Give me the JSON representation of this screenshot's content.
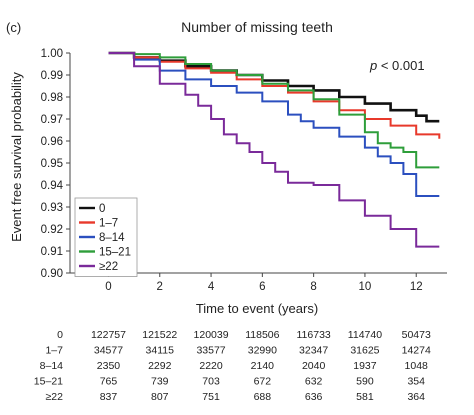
{
  "chart_data": {
    "type": "line",
    "panel_label": "(c)",
    "title": "Number of missing teeth",
    "p_value_label": "p",
    "p_value_text": " < 0.001",
    "xlabel": "Time to event (years)",
    "ylabel": "Event free survival probability",
    "xlim": [
      -1.5,
      13.2
    ],
    "ylim": [
      0.9,
      1.0
    ],
    "x_ticks": [
      0,
      2,
      4,
      6,
      8,
      10,
      12
    ],
    "x_tick_labels": [
      "0",
      "2",
      "4",
      "6",
      "8",
      "10",
      "12"
    ],
    "y_ticks": [
      0.9,
      0.91,
      0.92,
      0.93,
      0.94,
      0.95,
      0.96,
      0.97,
      0.98,
      0.99,
      1.0
    ],
    "y_tick_labels": [
      "0.90",
      "0.91",
      "0.92",
      "0.93",
      "0.94",
      "0.95",
      "0.96",
      "0.97",
      "0.98",
      "0.99",
      "1.00"
    ],
    "grid": false,
    "legend_position": "bottom-left",
    "series": [
      {
        "name": "0",
        "color": "#111111",
        "x": [
          0,
          1,
          2,
          3,
          4,
          5,
          6,
          7,
          8,
          9,
          10,
          11,
          12,
          12.4,
          12.9
        ],
        "y": [
          1.0,
          0.998,
          0.9965,
          0.994,
          0.992,
          0.99,
          0.9875,
          0.985,
          0.983,
          0.98,
          0.977,
          0.974,
          0.9715,
          0.969,
          0.969
        ]
      },
      {
        "name": "1–7",
        "color": "#e8392b",
        "x": [
          0,
          1,
          2,
          3,
          4,
          5,
          6,
          7,
          8,
          9,
          10,
          11,
          12,
          12.9
        ],
        "y": [
          1.0,
          0.998,
          0.996,
          0.993,
          0.991,
          0.988,
          0.985,
          0.982,
          0.978,
          0.974,
          0.97,
          0.967,
          0.963,
          0.961
        ]
      },
      {
        "name": "8–14",
        "color": "#2b4fbf",
        "x": [
          0,
          1,
          2,
          3,
          4,
          5,
          6,
          7,
          7.5,
          8,
          9,
          10,
          10.5,
          11,
          11.5,
          12,
          12.9
        ],
        "y": [
          1.0,
          0.997,
          0.992,
          0.988,
          0.985,
          0.982,
          0.978,
          0.972,
          0.969,
          0.966,
          0.962,
          0.957,
          0.953,
          0.95,
          0.945,
          0.935,
          0.935
        ]
      },
      {
        "name": "15–21",
        "color": "#2e9e3a",
        "x": [
          0,
          1,
          2,
          3,
          4,
          5,
          6,
          7,
          8,
          9,
          10,
          10.5,
          11,
          11.5,
          12,
          12.9
        ],
        "y": [
          1.0,
          0.9995,
          0.998,
          0.995,
          0.992,
          0.99,
          0.986,
          0.983,
          0.979,
          0.972,
          0.964,
          0.959,
          0.957,
          0.955,
          0.948,
          0.948
        ]
      },
      {
        "name": "≥22",
        "color": "#7a2a9a",
        "x": [
          0,
          1,
          2,
          2.5,
          3,
          3.5,
          4,
          4.5,
          5,
          5.5,
          6,
          6.5,
          7,
          7.5,
          8,
          9,
          10,
          11,
          12,
          12.9
        ],
        "y": [
          1.0,
          0.994,
          0.986,
          0.986,
          0.981,
          0.976,
          0.97,
          0.963,
          0.959,
          0.955,
          0.95,
          0.946,
          0.941,
          0.941,
          0.94,
          0.933,
          0.926,
          0.92,
          0.912,
          0.912
        ]
      }
    ],
    "risk_table": {
      "time_points": [
        0,
        2,
        4,
        6,
        8,
        10,
        12
      ],
      "rows": [
        {
          "label": "0",
          "counts": [
            "122757",
            "121522",
            "120039",
            "118506",
            "116733",
            "114740",
            "50473"
          ]
        },
        {
          "label": "1–7",
          "counts": [
            "34577",
            "34115",
            "33577",
            "32990",
            "32347",
            "31625",
            "14274"
          ]
        },
        {
          "label": "8–14",
          "counts": [
            "2350",
            "2292",
            "2220",
            "2140",
            "2040",
            "1937",
            "1048"
          ]
        },
        {
          "label": "15–21",
          "counts": [
            "765",
            "739",
            "703",
            "672",
            "632",
            "590",
            "354"
          ]
        },
        {
          "label": "≥22",
          "counts": [
            "837",
            "807",
            "751",
            "688",
            "636",
            "581",
            "364"
          ]
        }
      ]
    }
  }
}
